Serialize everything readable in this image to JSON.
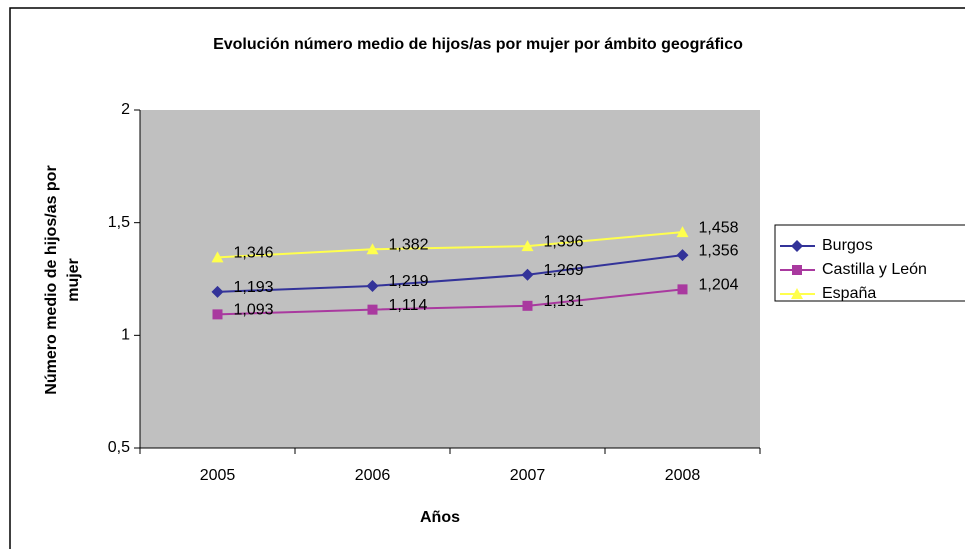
{
  "chart_data": {
    "type": "line",
    "title": "Evolución número medio de hijos/as por mujer por ámbito geográfico",
    "x_label": "Años",
    "y_label": "Número medio de hijos/as por mujer",
    "categories": [
      "2005",
      "2006",
      "2007",
      "2008"
    ],
    "series": [
      {
        "name": "Burgos",
        "color": "#333399",
        "marker": "diamond",
        "values": [
          1.193,
          1.219,
          1.269,
          1.356
        ],
        "value_labels": [
          "1,193",
          "1,219",
          "1,269",
          "1,356"
        ]
      },
      {
        "name": "Castilla y León",
        "color": "#a9399f",
        "marker": "square",
        "values": [
          1.093,
          1.114,
          1.131,
          1.204
        ],
        "value_labels": [
          "1,093",
          "1,114",
          "1,131",
          "1,204"
        ]
      },
      {
        "name": "España",
        "color": "#ffff4d",
        "marker": "triangle",
        "values": [
          1.346,
          1.382,
          1.396,
          1.458
        ],
        "value_labels": [
          "1,346",
          "1,382",
          "1,396",
          "1,458"
        ]
      }
    ],
    "ylim": [
      0.5,
      2
    ],
    "yticks": [
      {
        "value": 0.5,
        "label": "0,5"
      },
      1,
      {
        "value": 1.5,
        "label": "1,5"
      },
      2
    ],
    "grid": false,
    "legend": "right",
    "plot_background": "#c0c0c0"
  }
}
